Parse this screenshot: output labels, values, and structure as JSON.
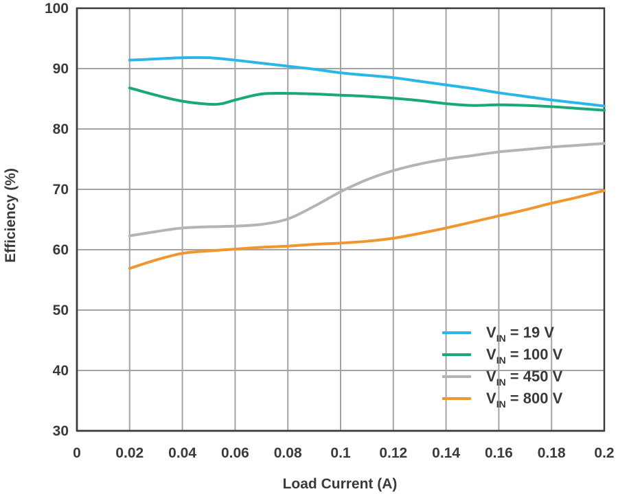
{
  "chart_data": {
    "type": "line",
    "xlabel": "Load Current (A)",
    "ylabel": "Efficiency (%)",
    "xlim": [
      0,
      0.2
    ],
    "ylim": [
      30,
      100
    ],
    "xticks": [
      "0",
      "0.02",
      "0.04",
      "0.06",
      "0.08",
      "0.1",
      "0.12",
      "0.14",
      "0.16",
      "0.18",
      "0.2"
    ],
    "yticks": [
      "30",
      "40",
      "50",
      "60",
      "70",
      "80",
      "90",
      "100"
    ],
    "grid": true,
    "legend_position": "bottom-right",
    "series": [
      {
        "name": "V_IN = 19 V",
        "legend_main": "V",
        "legend_sub": "IN",
        "legend_rest": " = 19 V",
        "color": "#29b6e8",
        "x": [
          0.02,
          0.03,
          0.04,
          0.05,
          0.06,
          0.07,
          0.08,
          0.09,
          0.1,
          0.11,
          0.12,
          0.13,
          0.14,
          0.15,
          0.16,
          0.17,
          0.18,
          0.19,
          0.2
        ],
        "y": [
          91.4,
          91.6,
          91.8,
          91.8,
          91.4,
          90.9,
          90.4,
          89.9,
          89.3,
          88.9,
          88.5,
          87.9,
          87.3,
          86.7,
          86.0,
          85.4,
          84.8,
          84.3,
          83.8
        ]
      },
      {
        "name": "V_IN = 100 V",
        "legend_main": "V",
        "legend_sub": "IN",
        "legend_rest": " = 100 V",
        "color": "#1aa974",
        "x": [
          0.02,
          0.03,
          0.04,
          0.05,
          0.055,
          0.06,
          0.07,
          0.08,
          0.09,
          0.1,
          0.11,
          0.12,
          0.13,
          0.14,
          0.15,
          0.16,
          0.17,
          0.18,
          0.19,
          0.2
        ],
        "y": [
          86.8,
          85.6,
          84.6,
          84.1,
          84.2,
          84.8,
          85.8,
          85.9,
          85.8,
          85.6,
          85.4,
          85.1,
          84.7,
          84.2,
          83.9,
          84.0,
          83.9,
          83.7,
          83.4,
          83.1
        ]
      },
      {
        "name": "V_IN = 450 V",
        "legend_main": "V",
        "legend_sub": "IN",
        "legend_rest": " = 450 V",
        "color": "#b4b4b4",
        "x": [
          0.02,
          0.03,
          0.04,
          0.05,
          0.06,
          0.07,
          0.08,
          0.09,
          0.1,
          0.11,
          0.12,
          0.13,
          0.14,
          0.15,
          0.16,
          0.17,
          0.18,
          0.19,
          0.2
        ],
        "y": [
          62.3,
          63.0,
          63.6,
          63.8,
          63.9,
          64.2,
          65.1,
          67.2,
          69.6,
          71.6,
          73.1,
          74.2,
          75.0,
          75.6,
          76.2,
          76.6,
          77.0,
          77.3,
          77.6
        ]
      },
      {
        "name": "V_IN = 800 V",
        "legend_main": "V",
        "legend_sub": "IN",
        "legend_rest": " = 800 V",
        "color": "#f0962e",
        "x": [
          0.02,
          0.03,
          0.04,
          0.05,
          0.06,
          0.07,
          0.08,
          0.09,
          0.1,
          0.11,
          0.12,
          0.13,
          0.14,
          0.15,
          0.16,
          0.17,
          0.18,
          0.19,
          0.2
        ],
        "y": [
          56.9,
          58.3,
          59.4,
          59.8,
          60.1,
          60.4,
          60.6,
          60.9,
          61.1,
          61.4,
          61.9,
          62.7,
          63.6,
          64.6,
          65.6,
          66.6,
          67.7,
          68.7,
          69.8
        ]
      }
    ],
    "colors": {
      "grid": "#a3a3a3",
      "axis": "#3a3a3a"
    }
  }
}
